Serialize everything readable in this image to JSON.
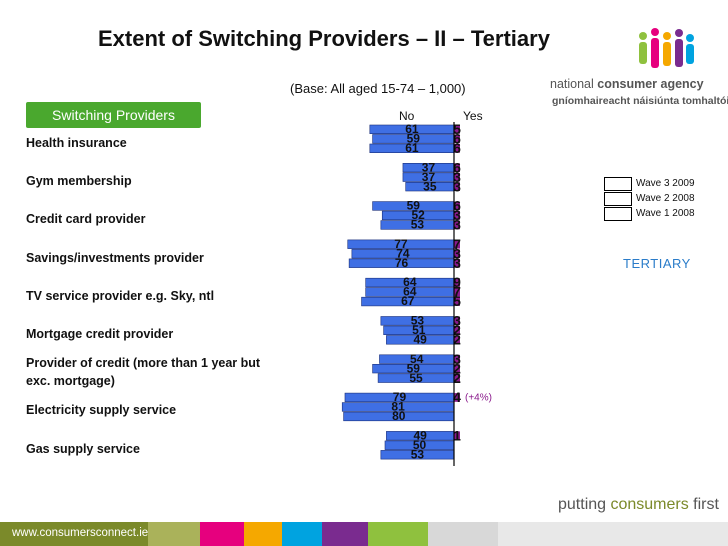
{
  "title": "Extent of Switching Providers – II – Tertiary",
  "base_note": "(Base: All aged 15-74 – 1,000)",
  "badge_label": "Switching Providers",
  "col_no": "No",
  "col_yes": "Yes",
  "legend": [
    "Wave 3 2009",
    "Wave 2 2008",
    "Wave 1 2008"
  ],
  "tertiary_label": "TERTIARY",
  "logo": {
    "prefix": "national",
    "name": "consumer agency",
    "irish": "gníomhaireacht náisiúnta tomhaltóirí"
  },
  "tagline": {
    "pre": "putting ",
    "bold": "consumers",
    "post": " first"
  },
  "footer_url": "www.consumersconnect.ie",
  "colors": {
    "bar": "#3f6fe4",
    "yes_mark": "#8a1a8c",
    "green": "#4aa82e",
    "tertiary": "#2a7cc9"
  },
  "chart_data": {
    "type": "bar",
    "orientation": "horizontal-diverging",
    "series_names": [
      "Wave 3 2009",
      "Wave 2 2008",
      "Wave 1 2008"
    ],
    "categories": [
      {
        "label": "Health insurance",
        "no": [
          61,
          59,
          61
        ],
        "yes": [
          "5",
          "6",
          "6"
        ]
      },
      {
        "label": "Gym membership",
        "no": [
          37,
          37,
          35
        ],
        "yes": [
          "6",
          "3",
          "3"
        ]
      },
      {
        "label": "Credit card provider",
        "no": [
          59,
          52,
          53
        ],
        "yes": [
          "6",
          "3",
          "3"
        ]
      },
      {
        "label": "Savings/investments provider",
        "no": [
          77,
          74,
          76
        ],
        "yes": [
          "7",
          "3",
          "3"
        ]
      },
      {
        "label": "TV service provider e.g. Sky, ntl",
        "no": [
          64,
          64,
          67
        ],
        "yes": [
          "9",
          "7",
          "5"
        ]
      },
      {
        "label": "Mortgage credit provider",
        "no": [
          53,
          51,
          49
        ],
        "yes": [
          "3",
          "2",
          "2"
        ]
      },
      {
        "label": "Provider of credit (more than 1 year but exc. mortgage)",
        "no": [
          54,
          59,
          55
        ],
        "yes": [
          "3",
          "2",
          "2"
        ]
      },
      {
        "label": "Electricity supply service",
        "no": [
          79,
          81,
          80
        ],
        "yes": [
          "4",
          "",
          ""
        ],
        "annotation": "(+4%)"
      },
      {
        "label": "Gas supply service",
        "no": [
          49,
          50,
          53
        ],
        "yes": [
          "1",
          "",
          ""
        ]
      }
    ],
    "xlim": [
      0,
      100
    ]
  }
}
